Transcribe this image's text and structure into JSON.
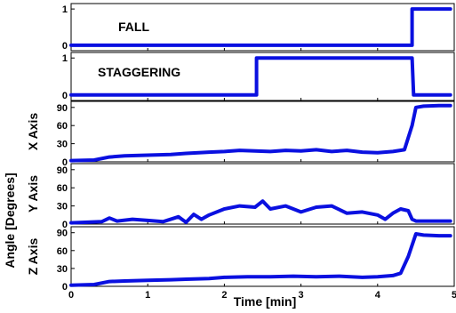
{
  "chart_data": {
    "type": "line",
    "color": "#0a10e0",
    "xlabel": "Time [min]",
    "ylabel_shared": "Angle [Degrees]",
    "xlim": [
      0,
      5
    ],
    "xticks": [
      "0",
      "1",
      "2",
      "3",
      "4",
      "5"
    ],
    "panels": [
      {
        "id": "fall",
        "label": "FALL",
        "ylabel": "",
        "ylim": [
          -0.15,
          1.15
        ],
        "yticks": [
          "0",
          "1"
        ],
        "series": [
          {
            "x": [
              0,
              4.45,
              4.45,
              4.95
            ],
            "y": [
              0,
              0,
              1,
              1
            ]
          }
        ]
      },
      {
        "id": "staggering",
        "label": "STAGGERING",
        "ylabel": "",
        "ylim": [
          -0.15,
          1.15
        ],
        "yticks": [
          "0",
          "1"
        ],
        "series": [
          {
            "x": [
              0,
              2.42,
              2.42,
              4.45,
              4.47,
              4.95
            ],
            "y": [
              0,
              0,
              1,
              1,
              0,
              0
            ]
          }
        ]
      },
      {
        "id": "x-axis",
        "label": "",
        "ylabel": "X Axis",
        "ylim": [
          0,
          100
        ],
        "yticks": [
          "0",
          "30",
          "60",
          "90"
        ],
        "series": [
          {
            "x": [
              0,
              0.3,
              0.5,
              0.7,
              1.0,
              1.3,
              1.5,
              1.8,
              2.0,
              2.2,
              2.4,
              2.6,
              2.8,
              3.0,
              3.2,
              3.4,
              3.6,
              3.8,
              4.0,
              4.2,
              4.35,
              4.45,
              4.5,
              4.6,
              4.8,
              4.95
            ],
            "y": [
              2,
              3,
              8,
              10,
              11,
              12,
              14,
              16,
              17,
              19,
              18,
              17,
              19,
              18,
              20,
              17,
              19,
              16,
              15,
              17,
              20,
              60,
              90,
              92,
              93,
              93
            ]
          }
        ]
      },
      {
        "id": "y-axis",
        "label": "",
        "ylabel": "Y Axis",
        "ylim": [
          0,
          100
        ],
        "yticks": [
          "0",
          "30",
          "60",
          "90"
        ],
        "series": [
          {
            "x": [
              0,
              0.4,
              0.5,
              0.6,
              0.8,
              1.0,
              1.2,
              1.4,
              1.5,
              1.6,
              1.7,
              1.8,
              2.0,
              2.2,
              2.4,
              2.5,
              2.6,
              2.8,
              3.0,
              3.2,
              3.4,
              3.6,
              3.8,
              4.0,
              4.1,
              4.2,
              4.3,
              4.4,
              4.45,
              4.5,
              4.7,
              4.95
            ],
            "y": [
              2,
              4,
              10,
              5,
              8,
              6,
              4,
              12,
              3,
              16,
              8,
              15,
              25,
              30,
              28,
              38,
              25,
              30,
              20,
              28,
              30,
              18,
              20,
              15,
              8,
              18,
              25,
              22,
              8,
              5,
              5,
              5
            ]
          }
        ]
      },
      {
        "id": "z-axis",
        "label": "",
        "ylabel": "Z Axis",
        "ylim": [
          0,
          100
        ],
        "yticks": [
          "0",
          "30",
          "60",
          "90"
        ],
        "series": [
          {
            "x": [
              0,
              0.3,
              0.5,
              0.7,
              1.0,
              1.3,
              1.5,
              1.8,
              2.0,
              2.3,
              2.6,
              2.9,
              3.2,
              3.5,
              3.8,
              4.0,
              4.2,
              4.3,
              4.4,
              4.5,
              4.6,
              4.8,
              4.95
            ],
            "y": [
              2,
              3,
              8,
              9,
              10,
              11,
              12,
              13,
              15,
              16,
              16,
              17,
              16,
              17,
              15,
              16,
              18,
              22,
              50,
              88,
              86,
              85,
              85
            ]
          }
        ]
      }
    ]
  }
}
